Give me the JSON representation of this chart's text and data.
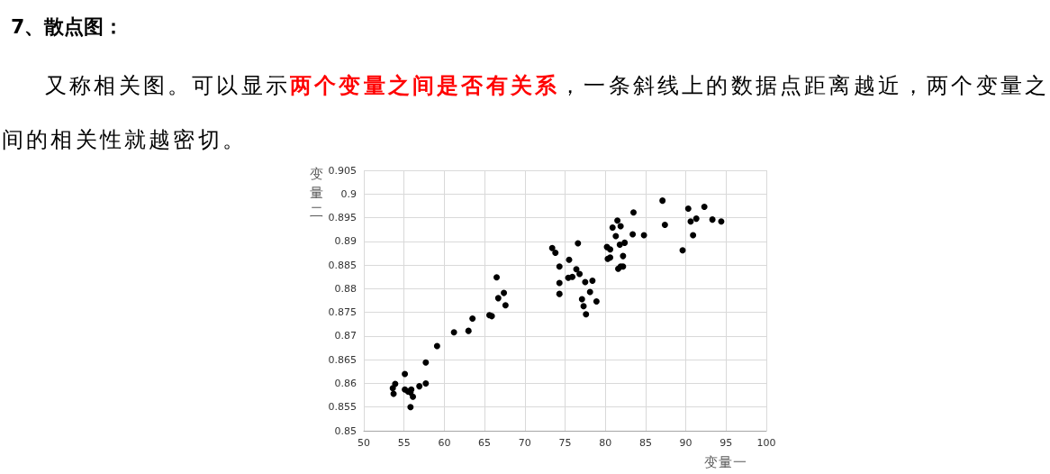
{
  "chart_data": {
    "type": "scatter",
    "title": "7、散点图：",
    "annotations": [
      "又称相关图。可以显示",
      "两个变量之间是否有关系",
      "，一条斜线上的数据点距离越近，两个变量之",
      "间的相关性就越密切。"
    ],
    "xlabel": "变量一",
    "ylabel": "变量二",
    "x": [
      53.6,
      53.9,
      53.7,
      55.1,
      55.1,
      55.5,
      55.9,
      55.8,
      56.1,
      55.8,
      56.9,
      57.7,
      57.7,
      59.1,
      61.2,
      63.0,
      63.5,
      65.6,
      65.9,
      66.5,
      66.7,
      67.4,
      67.6,
      73.4,
      73.8,
      74.3,
      74.3,
      74.3,
      75.5,
      75.4,
      75.9,
      76.6,
      76.4,
      76.8,
      77.5,
      78.4,
      78.1,
      77.1,
      77.3,
      77.6,
      78.9,
      80.2,
      80.6,
      80.3,
      80.6,
      81.5,
      80.9,
      81.3,
      81.9,
      81.8,
      82.4,
      82.2,
      81.6,
      81.9,
      82.2,
      83.5,
      83.4,
      84.8,
      87.1,
      87.4,
      89.6,
      90.3,
      90.6,
      91.3,
      90.9,
      92.3,
      93.3,
      94.4
    ],
    "values": [
      0.859,
      0.8599,
      0.8578,
      0.862,
      0.8587,
      0.8583,
      0.8587,
      0.8581,
      0.8572,
      0.855,
      0.8594,
      0.86,
      0.8644,
      0.8679,
      0.8708,
      0.8711,
      0.8737,
      0.8744,
      0.8742,
      0.8824,
      0.878,
      0.8791,
      0.8765,
      0.8886,
      0.8876,
      0.8847,
      0.8812,
      0.8789,
      0.8861,
      0.8823,
      0.8825,
      0.8896,
      0.8841,
      0.8831,
      0.8814,
      0.8817,
      0.8793,
      0.8778,
      0.8763,
      0.8746,
      0.8773,
      0.8888,
      0.8883,
      0.8863,
      0.8866,
      0.8944,
      0.8929,
      0.8911,
      0.8932,
      0.8893,
      0.8897,
      0.8869,
      0.8842,
      0.8847,
      0.8847,
      0.8961,
      0.8915,
      0.8913,
      0.8986,
      0.8935,
      0.8881,
      0.8969,
      0.8942,
      0.8948,
      0.8913,
      0.8973,
      0.8946,
      0.8942
    ],
    "color": "#000000",
    "xlim": [
      50,
      100
    ],
    "xticks": [
      50,
      55,
      60,
      65,
      70,
      75,
      80,
      85,
      90,
      95,
      100
    ],
    "ylim": [
      0.85,
      0.905
    ],
    "yticks": [
      0.85,
      0.855,
      0.86,
      0.865,
      0.87,
      0.875,
      0.88,
      0.885,
      0.89,
      0.895,
      0.9,
      0.905
    ],
    "grid": true,
    "marker": "circle"
  }
}
